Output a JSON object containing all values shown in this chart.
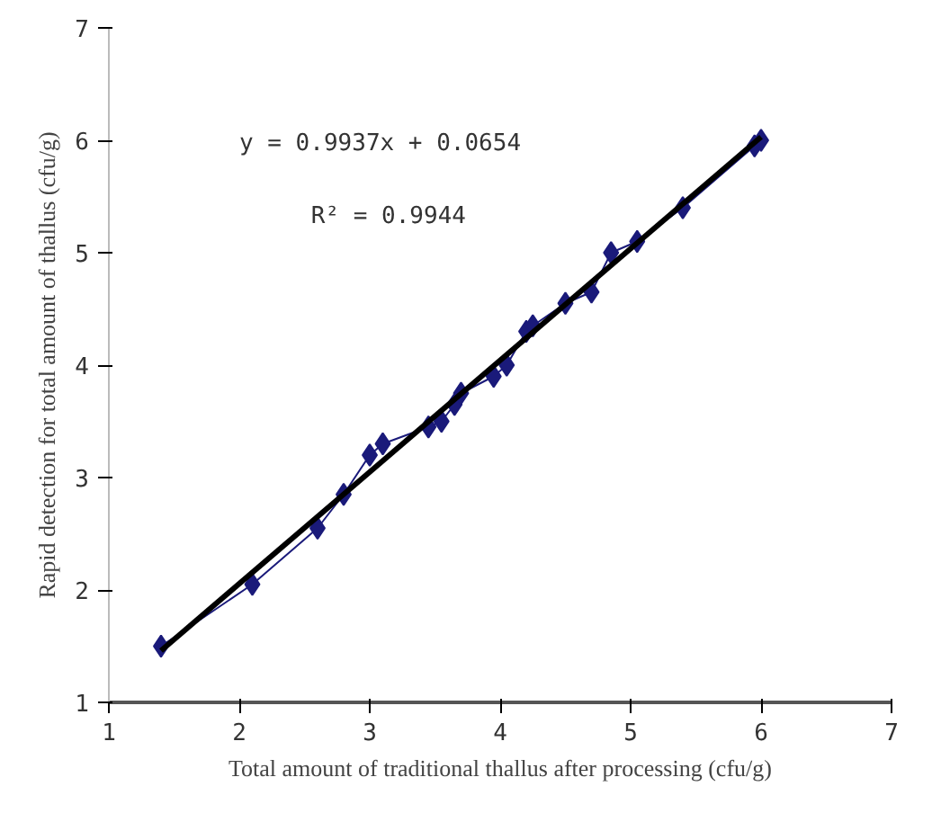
{
  "chart_data": {
    "type": "line",
    "xlabel": "Total amount of traditional thallus after processing (cfu/g)",
    "ylabel": "Rapid detection for total amount of thallus (cfu/g)",
    "xlim": [
      1,
      7
    ],
    "ylim": [
      1,
      7
    ],
    "xticks": [
      1,
      2,
      3,
      4,
      5,
      6,
      7
    ],
    "yticks": [
      1,
      2,
      3,
      4,
      5,
      6,
      7
    ],
    "grid": false,
    "series": [
      {
        "marker": "diamond",
        "color": "#1a1a7a",
        "x": [
          1.4,
          2.1,
          2.6,
          2.8,
          3.0,
          3.1,
          3.45,
          3.55,
          3.65,
          3.7,
          3.95,
          4.05,
          4.2,
          4.25,
          4.5,
          4.7,
          4.85,
          5.05,
          5.4,
          5.95,
          6.0
        ],
        "values": [
          1.5,
          2.05,
          2.55,
          2.85,
          3.2,
          3.3,
          3.45,
          3.5,
          3.65,
          3.75,
          3.9,
          4.0,
          4.3,
          4.35,
          4.55,
          4.65,
          5.0,
          5.1,
          5.4,
          5.95,
          6.0
        ]
      },
      {
        "marker": "none",
        "color": "#000000",
        "x": [
          1.4,
          6.0
        ],
        "values": [
          1.46,
          6.03
        ]
      }
    ],
    "annotations": [
      "y = 0.9937x + 0.0654",
      "R² = 0.9944"
    ]
  }
}
